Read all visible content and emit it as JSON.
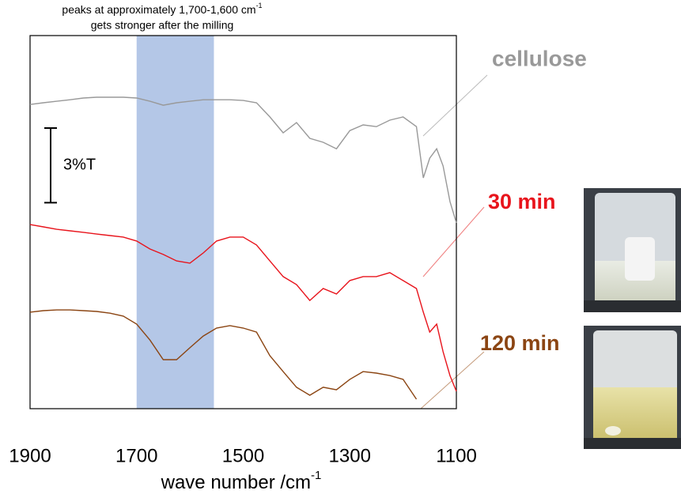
{
  "chart_data": {
    "type": "line",
    "annotation": {
      "text": "peaks at approximately 1,700-1,600 cm",
      "superscript": "-1",
      "line2": "gets stronger after the milling"
    },
    "xlabel": {
      "text": "wave number /cm",
      "superscript": "-1"
    },
    "xlim": [
      1900,
      1100
    ],
    "ylim": [
      0,
      15
    ],
    "xticks": [
      1900,
      1700,
      1500,
      1300,
      1100
    ],
    "highlight": [
      1700,
      1555
    ],
    "highlight_color": "#b4c7e7",
    "scale_bar": {
      "value": 3,
      "label": "3%T"
    },
    "x": [
      1900,
      1875,
      1850,
      1825,
      1800,
      1775,
      1750,
      1725,
      1700,
      1675,
      1650,
      1625,
      1600,
      1575,
      1550,
      1525,
      1500,
      1475,
      1450,
      1425,
      1400,
      1375,
      1350,
      1325,
      1300,
      1275,
      1250,
      1225,
      1200,
      1175,
      1162,
      1150,
      1137,
      1125,
      1112,
      1100
    ],
    "series": [
      {
        "name": "cellulose",
        "color": "#999999",
        "values": [
          12.23,
          12.3,
          12.36,
          12.42,
          12.49,
          12.52,
          12.52,
          12.52,
          12.49,
          12.36,
          12.2,
          12.3,
          12.36,
          12.42,
          12.42,
          12.42,
          12.39,
          12.3,
          11.73,
          11.09,
          11.5,
          10.87,
          10.71,
          10.45,
          11.18,
          11.41,
          11.34,
          11.6,
          11.73,
          11.34,
          9.28,
          10.07,
          10.45,
          9.76,
          8.33,
          7.47
        ]
      },
      {
        "name": "30 min",
        "color": "#e8141c",
        "values": [
          7.4,
          7.31,
          7.21,
          7.15,
          7.09,
          7.02,
          6.96,
          6.9,
          6.74,
          6.42,
          6.2,
          5.94,
          5.85,
          6.26,
          6.74,
          6.9,
          6.9,
          6.58,
          5.94,
          5.31,
          4.99,
          4.35,
          4.83,
          4.61,
          5.15,
          5.31,
          5.31,
          5.47,
          5.15,
          4.83,
          3.88,
          3.08,
          3.4,
          2.29,
          1.33,
          0.7
        ]
      },
      {
        "name": "120 min",
        "color": "#8b4513",
        "values": [
          3.88,
          3.94,
          3.97,
          3.97,
          3.94,
          3.91,
          3.84,
          3.72,
          3.4,
          2.76,
          1.97,
          1.97,
          2.45,
          2.92,
          3.24,
          3.34,
          3.24,
          3.08,
          2.13,
          1.49,
          0.86,
          0.54,
          0.86,
          0.76,
          1.18,
          1.49,
          1.43,
          1.33,
          1.18,
          0.38,
          null,
          null,
          null,
          null,
          null,
          null
        ]
      }
    ]
  }
}
